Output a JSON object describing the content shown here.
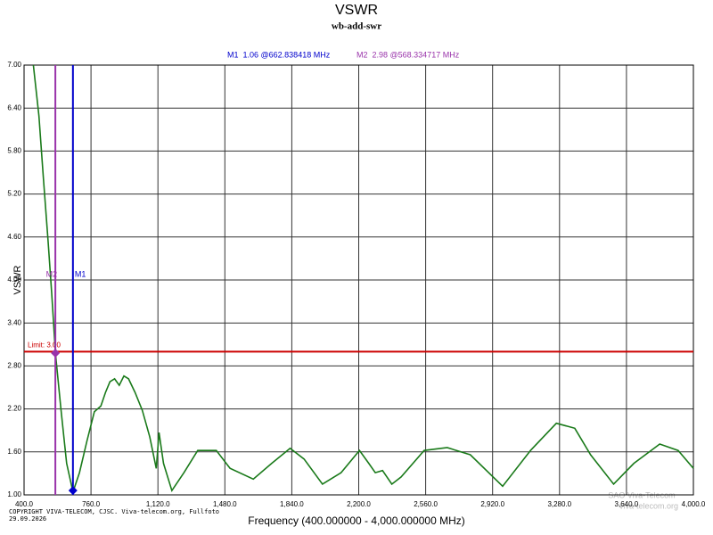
{
  "chart_data": {
    "type": "line",
    "title": "VSWR",
    "subtitle": "wb-add-swr",
    "ylabel": "VSWR",
    "xlabel": "Frequency (400.000000 - 4,000.000000 MHz)",
    "copyright": "COPYRIGHT VIVA-TELECOM, CJSC. Viva-telecom.org, Fullfoto",
    "date": "29.09.2026",
    "watermark": [
      "SAO Viva-Telecom",
      "viva-telecom.org"
    ],
    "xlim": [
      400,
      4000
    ],
    "ylim": [
      1,
      7
    ],
    "grid": true,
    "xticks": [
      {
        "value": 400,
        "label": "400.0"
      },
      {
        "value": 760,
        "label": "760.0"
      },
      {
        "value": 1120,
        "label": "1,120.0"
      },
      {
        "value": 1480,
        "label": "1,480.0"
      },
      {
        "value": 1840,
        "label": "1,840.0"
      },
      {
        "value": 2200,
        "label": "2,200.0"
      },
      {
        "value": 2560,
        "label": "2,560.0"
      },
      {
        "value": 2920,
        "label": "2,920.0"
      },
      {
        "value": 3280,
        "label": "3,280.0"
      },
      {
        "value": 3640,
        "label": "3,640.0"
      },
      {
        "value": 4000,
        "label": "4,000.0"
      }
    ],
    "yticks": [
      {
        "value": 1,
        "label": "1.00"
      },
      {
        "value": 1.6,
        "label": "1.60"
      },
      {
        "value": 2.2,
        "label": "2.20"
      },
      {
        "value": 2.8,
        "label": "2.80"
      },
      {
        "value": 3.4,
        "label": "3.40"
      },
      {
        "value": 4,
        "label": "4.00"
      },
      {
        "value": 4.6,
        "label": "4.60"
      },
      {
        "value": 5.2,
        "label": "5.20"
      },
      {
        "value": 5.8,
        "label": "5.80"
      },
      {
        "value": 6.4,
        "label": "6.40"
      },
      {
        "value": 7,
        "label": "7.00"
      }
    ],
    "series": [
      {
        "color": "#1a7a1a",
        "x": [
          450,
          480,
          504,
          529,
          549,
          569,
          599,
          629,
          663,
          698,
          738,
          778,
          813,
          838,
          862,
          887,
          912,
          937,
          962,
          997,
          1036,
          1076,
          1111,
          1126,
          1150,
          1195,
          1260,
          1334,
          1434,
          1508,
          1633,
          1732,
          1831,
          1906,
          2005,
          2105,
          2204,
          2254,
          2289,
          2328,
          2378,
          2428,
          2552,
          2676,
          2800,
          2974,
          3124,
          3263,
          3362,
          3447,
          3571,
          3680,
          3819,
          3918,
          4000
        ],
        "values": [
          7.0,
          6.29,
          5.42,
          4.55,
          3.8,
          2.97,
          2.18,
          1.44,
          1.04,
          1.31,
          1.75,
          2.16,
          2.24,
          2.43,
          2.58,
          2.62,
          2.53,
          2.66,
          2.62,
          2.43,
          2.18,
          1.81,
          1.37,
          1.87,
          1.44,
          1.06,
          1.31,
          1.62,
          1.62,
          1.37,
          1.22,
          1.44,
          1.65,
          1.5,
          1.15,
          1.31,
          1.62,
          1.44,
          1.31,
          1.34,
          1.15,
          1.25,
          1.62,
          1.66,
          1.56,
          1.12,
          1.62,
          2.0,
          1.93,
          1.56,
          1.15,
          1.44,
          1.71,
          1.62,
          1.37
        ]
      }
    ],
    "limit": {
      "value": 3,
      "label": "Limit: 3.00",
      "color": "#cc0000"
    },
    "markers": [
      {
        "name": "M1",
        "x": 662.838418,
        "value": 1.06,
        "label": "M1  1.06 @662.838418 MHz",
        "color": "#0000cc"
      },
      {
        "name": "M2",
        "x": 568.334717,
        "value": 2.98,
        "label": "M2  2.98 @568.334717 MHz",
        "color": "#9933aa"
      }
    ]
  }
}
